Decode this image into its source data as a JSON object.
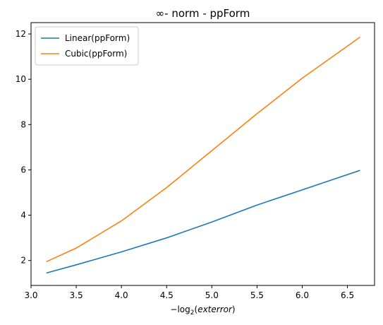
{
  "chart_data": {
    "type": "line",
    "title": "∞- norm - ppForm",
    "xlabel": "−log2 (exterror)",
    "xlabel_parts": {
      "prefix": "−log",
      "subscript": "2",
      "argument": "exterror"
    },
    "ylabel": "",
    "xlim": [
      3.0,
      6.8
    ],
    "ylim": [
      0.9,
      12.5
    ],
    "xticks": [
      3.0,
      3.5,
      4.0,
      4.5,
      5.0,
      5.5,
      6.0,
      6.5
    ],
    "xtick_labels": [
      "3.0",
      "3.5",
      "4.0",
      "4.5",
      "5.0",
      "5.5",
      "6.0",
      "6.5"
    ],
    "yticks": [
      2,
      4,
      6,
      8,
      10,
      12
    ],
    "ytick_labels": [
      "2",
      "4",
      "6",
      "8",
      "10",
      "12"
    ],
    "grid": false,
    "legend_position": "top-left",
    "series": [
      {
        "name": "Linear(ppForm)",
        "color": "#1f77b4",
        "x": [
          3.17,
          3.5,
          4.0,
          4.5,
          5.0,
          5.5,
          6.0,
          6.64
        ],
        "y": [
          1.45,
          1.81,
          2.38,
          3.0,
          3.7,
          4.45,
          5.12,
          5.98
        ]
      },
      {
        "name": "Cubic(ppForm)",
        "color": "#ff7f0e",
        "x": [
          3.17,
          3.5,
          4.0,
          4.5,
          5.0,
          5.5,
          6.0,
          6.64
        ],
        "y": [
          1.95,
          2.55,
          3.75,
          5.22,
          6.85,
          8.48,
          10.05,
          11.86
        ]
      }
    ]
  }
}
